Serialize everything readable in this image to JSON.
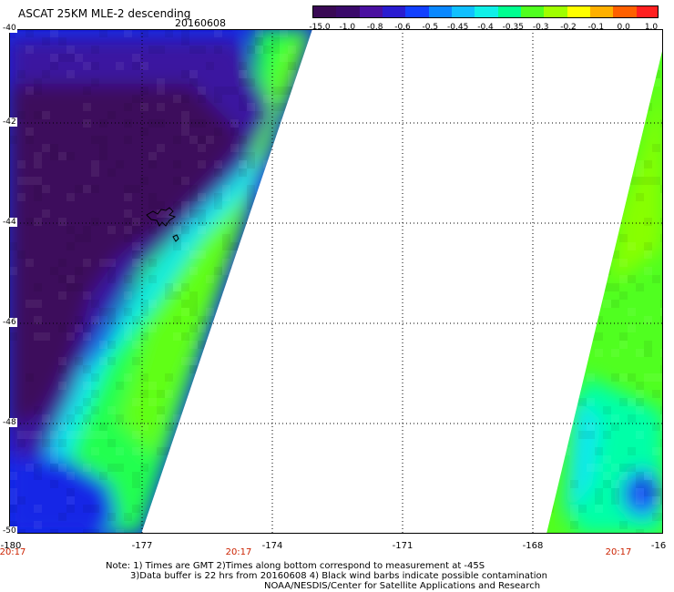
{
  "header": {
    "title": "ASCAT 25KM MLE-2 descending",
    "date": "20160608"
  },
  "colorbar": {
    "labels": [
      "-15.0",
      "-1.0",
      "-0.8",
      "-0.6",
      "-0.5",
      "-0.45",
      "-0.4",
      "-0.35",
      "-0.3",
      "-0.2",
      "-0.1",
      "0.0",
      "1.0"
    ],
    "colors": [
      "#3a0a55",
      "#3a0a6a",
      "#4a10a0",
      "#2a1cd0",
      "#1240ff",
      "#0a88ff",
      "#10c0ff",
      "#10f0e8",
      "#00ff90",
      "#50ff20",
      "#a0ff00",
      "#ffff00",
      "#ffb000",
      "#ff6000",
      "#ff2020"
    ]
  },
  "map": {
    "lon_labels": [
      "-180",
      "-177",
      "-174",
      "-171",
      "-168",
      "-16"
    ],
    "lat_labels": [
      "-40",
      "-42",
      "-44",
      "-46",
      "-48",
      "-50"
    ],
    "grid_lines": "dotted",
    "palette": {
      "deep": "#3d0a5c",
      "purple": "#3a14a0",
      "blue": "#1428e6",
      "lightblue": "#1a66ff",
      "cyan": "#10e6f0",
      "aqua": "#00ffa8",
      "green": "#20ff50",
      "lime": "#60ff18",
      "ygreen": "#88ff00",
      "coast": "#000000"
    }
  },
  "times": [
    "20:17",
    "20:17",
    "20:17"
  ],
  "notes": [
    "Note: 1) Times are GMT 2)Times along bottom correspond to measurement at -45S",
    "3)Data buffer is 22 hrs from 20160608 4) Black wind barbs indicate possible contamination",
    "NOAA/NESDIS/Center for Satellite Applications and Research"
  ]
}
